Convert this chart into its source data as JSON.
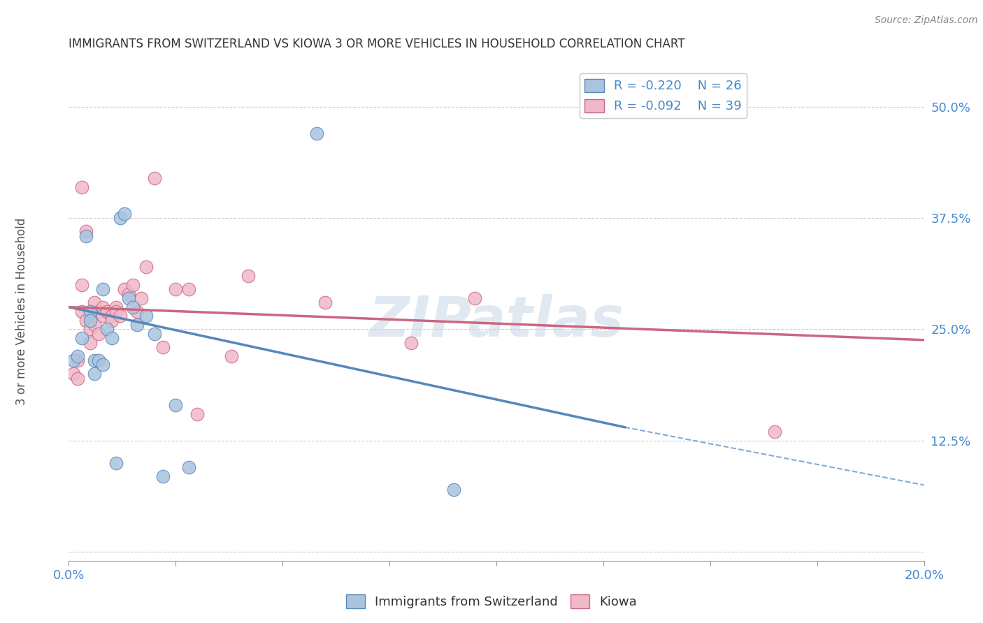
{
  "title": "IMMIGRANTS FROM SWITZERLAND VS KIOWA 3 OR MORE VEHICLES IN HOUSEHOLD CORRELATION CHART",
  "source_text": "Source: ZipAtlas.com",
  "ylabel": "3 or more Vehicles in Household",
  "xlim": [
    0.0,
    0.2
  ],
  "ylim": [
    -0.01,
    0.55
  ],
  "ytick_positions": [
    0.0,
    0.125,
    0.25,
    0.375,
    0.5
  ],
  "ytick_labels": [
    "",
    "12.5%",
    "25.0%",
    "37.5%",
    "50.0%"
  ],
  "grid_color": "#cccccc",
  "background_color": "#ffffff",
  "watermark": "ZIPatlas",
  "watermark_color": "#c8d8e8",
  "blue_color": "#5588bb",
  "blue_fill": "#aac4de",
  "pink_color": "#cc6680",
  "pink_fill": "#f0b8c8",
  "R_blue": -0.22,
  "N_blue": 26,
  "R_pink": -0.092,
  "N_pink": 39,
  "legend_label_blue": "Immigrants from Switzerland",
  "legend_label_pink": "Kiowa",
  "title_color": "#333333",
  "axis_label_color": "#555555",
  "tick_label_color": "#4488cc",
  "blue_scatter_x": [
    0.001,
    0.002,
    0.003,
    0.004,
    0.005,
    0.005,
    0.006,
    0.006,
    0.007,
    0.008,
    0.008,
    0.009,
    0.01,
    0.011,
    0.012,
    0.013,
    0.014,
    0.015,
    0.016,
    0.018,
    0.02,
    0.022,
    0.025,
    0.028,
    0.058,
    0.09
  ],
  "blue_scatter_y": [
    0.215,
    0.22,
    0.24,
    0.355,
    0.27,
    0.26,
    0.215,
    0.2,
    0.215,
    0.21,
    0.295,
    0.25,
    0.24,
    0.1,
    0.375,
    0.38,
    0.285,
    0.275,
    0.255,
    0.265,
    0.245,
    0.085,
    0.165,
    0.095,
    0.47,
    0.07
  ],
  "pink_scatter_x": [
    0.001,
    0.002,
    0.003,
    0.003,
    0.003,
    0.004,
    0.004,
    0.005,
    0.005,
    0.006,
    0.006,
    0.007,
    0.007,
    0.008,
    0.008,
    0.009,
    0.01,
    0.01,
    0.011,
    0.011,
    0.012,
    0.013,
    0.014,
    0.015,
    0.016,
    0.017,
    0.018,
    0.02,
    0.022,
    0.025,
    0.028,
    0.03,
    0.038,
    0.042,
    0.06,
    0.08,
    0.095,
    0.165,
    0.002
  ],
  "pink_scatter_y": [
    0.2,
    0.215,
    0.41,
    0.3,
    0.27,
    0.36,
    0.26,
    0.25,
    0.235,
    0.28,
    0.255,
    0.27,
    0.245,
    0.275,
    0.265,
    0.27,
    0.265,
    0.26,
    0.275,
    0.27,
    0.265,
    0.295,
    0.29,
    0.3,
    0.27,
    0.285,
    0.32,
    0.42,
    0.23,
    0.295,
    0.295,
    0.155,
    0.22,
    0.31,
    0.28,
    0.235,
    0.285,
    0.135,
    0.195
  ],
  "blue_line_x0": 0.0,
  "blue_line_y0": 0.275,
  "blue_line_x_split": 0.13,
  "blue_line_y_split": 0.14,
  "blue_line_x1": 0.2,
  "blue_line_y1": 0.075,
  "pink_line_x0": 0.0,
  "pink_line_y0": 0.275,
  "pink_line_x1": 0.2,
  "pink_line_y1": 0.238
}
